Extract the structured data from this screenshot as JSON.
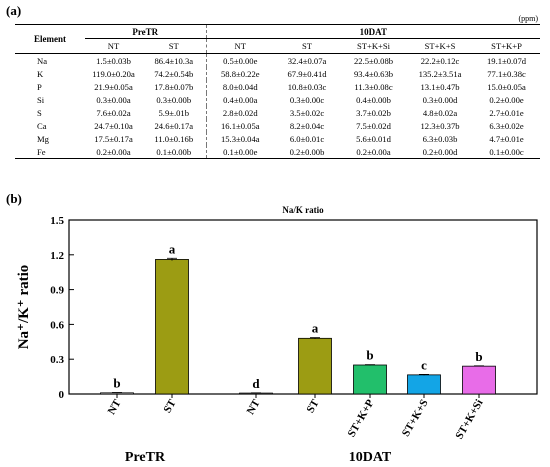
{
  "panel_a": {
    "label": "(a)",
    "unit": "(ppm)",
    "element_header": "Element",
    "groups": [
      {
        "name": "PreTR",
        "columns": [
          "NT",
          "ST"
        ]
      },
      {
        "name": "10DAT",
        "columns": [
          "NT",
          "ST",
          "ST+K+Si",
          "ST+K+S",
          "ST+K+P"
        ]
      }
    ],
    "rows": [
      {
        "element": "Na",
        "cells": [
          "1.5±0.03b",
          "86.4±10.3a",
          "0.5±0.00e",
          "32.4±0.07a",
          "22.5±0.08b",
          "22.2±0.12c",
          "19.1±0.07d"
        ]
      },
      {
        "element": "K",
        "cells": [
          "119.0±0.20a",
          "74.2±0.54b",
          "58.8±0.22e",
          "67.9±0.41d",
          "93.4±0.63b",
          "135.2±3.51a",
          "77.1±0.38c"
        ]
      },
      {
        "element": "P",
        "cells": [
          "21.9±0.05a",
          "17.8±0.07b",
          "8.0±0.04d",
          "10.8±0.03c",
          "11.3±0.08c",
          "13.1±0.47b",
          "15.0±0.05a"
        ]
      },
      {
        "element": "Si",
        "cells": [
          "0.3±0.00a",
          "0.3±0.00b",
          "0.4±0.00a",
          "0.3±0.00c",
          "0.4±0.00b",
          "0.3±0.00d",
          "0.2±0.00e"
        ]
      },
      {
        "element": "S",
        "cells": [
          "7.6±0.02a",
          "5.9±.01b",
          "2.8±0.02d",
          "3.5±0.02c",
          "3.7±0.02b",
          "4.8±0.02a",
          "2.7±0.01e"
        ]
      },
      {
        "element": "Ca",
        "cells": [
          "24.7±0.10a",
          "24.6±0.17a",
          "16.1±0.05a",
          "8.2±0.04c",
          "7.5±0.02d",
          "12.3±0.37b",
          "6.3±0.02e"
        ]
      },
      {
        "element": "Mg",
        "cells": [
          "17.5±0.17a",
          "11.0±0.16b",
          "15.3±0.04a",
          "6.0±0.01c",
          "5.6±0.01d",
          "6.3±0.03b",
          "4.7±0.01e"
        ]
      },
      {
        "element": "Fe",
        "cells": [
          "0.2±0.00a",
          "0.1±0.00b",
          "0.1±0.00e",
          "0.2±0.00b",
          "0.2±0.00a",
          "0.2±0.00d",
          "0.1±0.00c"
        ]
      }
    ]
  },
  "panel_b": {
    "label": "(b)"
  },
  "chart_data": {
    "type": "bar",
    "title": "Na/K ratio",
    "ylabel": "Na⁺/K⁺ ratio",
    "xlabel": "",
    "ylim": [
      0,
      1.5
    ],
    "yticks": [
      0,
      0.3,
      0.6,
      0.9,
      1.2,
      1.5
    ],
    "ytick_labels": [
      "0",
      "0.3",
      "0.6",
      "0.9",
      "1.2",
      "1.5"
    ],
    "groups": [
      {
        "name": "PreTR",
        "bars": [
          {
            "category": "NT",
            "value": 0.01,
            "error": 0.003,
            "letter": "b",
            "color": "#ffffff"
          },
          {
            "category": "ST",
            "value": 1.16,
            "error": 0.01,
            "letter": "a",
            "color": "#9c9c13"
          }
        ]
      },
      {
        "name": "10DAT",
        "bars": [
          {
            "category": "NT",
            "value": 0.008,
            "error": 0.002,
            "letter": "d",
            "color": "#ffffff"
          },
          {
            "category": "ST",
            "value": 0.48,
            "error": 0.006,
            "letter": "a",
            "color": "#9c9c13"
          },
          {
            "category": "ST+K+P",
            "value": 0.25,
            "error": 0.003,
            "letter": "b",
            "color": "#22bf6b"
          },
          {
            "category": "ST+K+S",
            "value": 0.165,
            "error": 0.004,
            "letter": "c",
            "color": "#13a5e6"
          },
          {
            "category": "ST+K+Si",
            "value": 0.24,
            "error": 0.003,
            "letter": "b",
            "color": "#e86ce8"
          }
        ]
      }
    ]
  }
}
